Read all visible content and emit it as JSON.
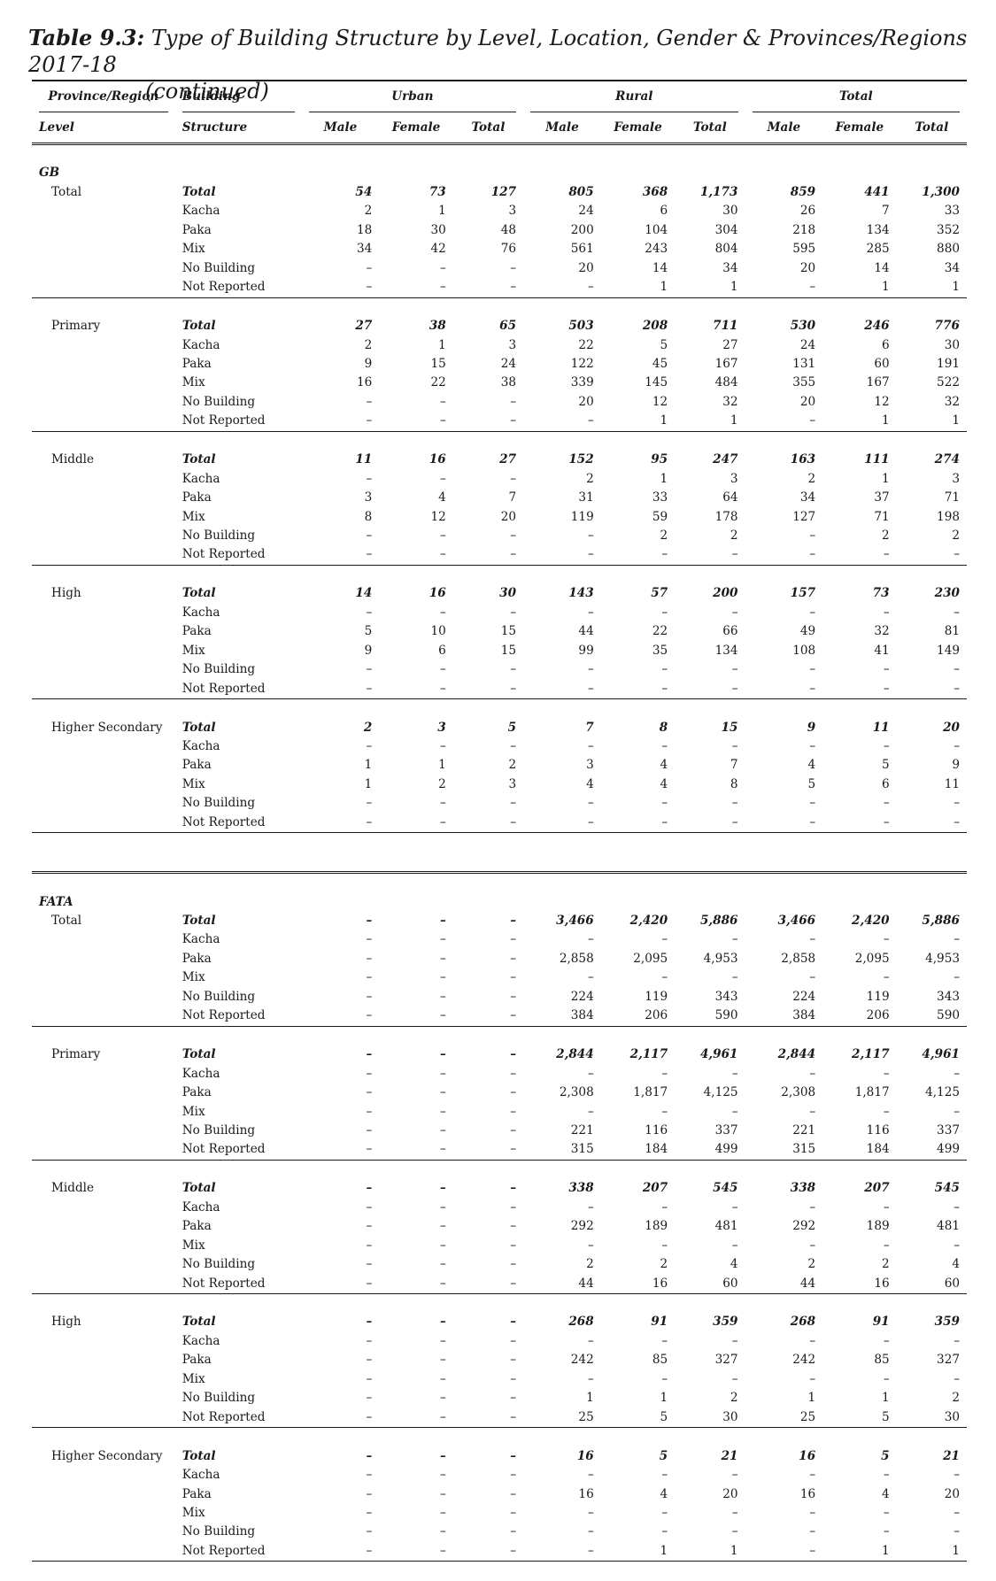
{
  "title": {
    "label": "Table 9.3:",
    "text": "Type of Building Structure by Level, Location, Gender & Provinces/Regions 2017-18",
    "continued": "(continued)"
  },
  "header": {
    "province_region": "Province/Region",
    "building": "Building",
    "level": "Level",
    "structure": "Structure",
    "groups": [
      "Urban",
      "Rural",
      "Total"
    ],
    "sub": [
      "Male",
      "Female",
      "Total"
    ]
  },
  "structures": [
    "Total",
    "Kacha",
    "Paka",
    "Mix",
    "No Building",
    "Not Reported"
  ],
  "sections": [
    {
      "name": "GB",
      "levels": [
        {
          "level": "Total",
          "rows": [
            [
              "54",
              "73",
              "127",
              "805",
              "368",
              "1,173",
              "859",
              "441",
              "1,300"
            ],
            [
              "2",
              "1",
              "3",
              "24",
              "6",
              "30",
              "26",
              "7",
              "33"
            ],
            [
              "18",
              "30",
              "48",
              "200",
              "104",
              "304",
              "218",
              "134",
              "352"
            ],
            [
              "34",
              "42",
              "76",
              "561",
              "243",
              "804",
              "595",
              "285",
              "880"
            ],
            [
              "–",
              "–",
              "–",
              "20",
              "14",
              "34",
              "20",
              "14",
              "34"
            ],
            [
              "–",
              "–",
              "–",
              "–",
              "1",
              "1",
              "–",
              "1",
              "1"
            ]
          ]
        },
        {
          "level": "Primary",
          "rows": [
            [
              "27",
              "38",
              "65",
              "503",
              "208",
              "711",
              "530",
              "246",
              "776"
            ],
            [
              "2",
              "1",
              "3",
              "22",
              "5",
              "27",
              "24",
              "6",
              "30"
            ],
            [
              "9",
              "15",
              "24",
              "122",
              "45",
              "167",
              "131",
              "60",
              "191"
            ],
            [
              "16",
              "22",
              "38",
              "339",
              "145",
              "484",
              "355",
              "167",
              "522"
            ],
            [
              "–",
              "–",
              "–",
              "20",
              "12",
              "32",
              "20",
              "12",
              "32"
            ],
            [
              "–",
              "–",
              "–",
              "–",
              "1",
              "1",
              "–",
              "1",
              "1"
            ]
          ]
        },
        {
          "level": "Middle",
          "rows": [
            [
              "11",
              "16",
              "27",
              "152",
              "95",
              "247",
              "163",
              "111",
              "274"
            ],
            [
              "–",
              "–",
              "–",
              "2",
              "1",
              "3",
              "2",
              "1",
              "3"
            ],
            [
              "3",
              "4",
              "7",
              "31",
              "33",
              "64",
              "34",
              "37",
              "71"
            ],
            [
              "8",
              "12",
              "20",
              "119",
              "59",
              "178",
              "127",
              "71",
              "198"
            ],
            [
              "–",
              "–",
              "–",
              "–",
              "2",
              "2",
              "–",
              "2",
              "2"
            ],
            [
              "–",
              "–",
              "–",
              "–",
              "–",
              "–",
              "–",
              "–",
              "–"
            ]
          ]
        },
        {
          "level": "High",
          "rows": [
            [
              "14",
              "16",
              "30",
              "143",
              "57",
              "200",
              "157",
              "73",
              "230"
            ],
            [
              "–",
              "–",
              "–",
              "–",
              "–",
              "–",
              "–",
              "–",
              "–"
            ],
            [
              "5",
              "10",
              "15",
              "44",
              "22",
              "66",
              "49",
              "32",
              "81"
            ],
            [
              "9",
              "6",
              "15",
              "99",
              "35",
              "134",
              "108",
              "41",
              "149"
            ],
            [
              "–",
              "–",
              "–",
              "–",
              "–",
              "–",
              "–",
              "–",
              "–"
            ],
            [
              "–",
              "–",
              "–",
              "–",
              "–",
              "–",
              "–",
              "–",
              "–"
            ]
          ]
        },
        {
          "level": "Higher Secondary",
          "rows": [
            [
              "2",
              "3",
              "5",
              "7",
              "8",
              "15",
              "9",
              "11",
              "20"
            ],
            [
              "–",
              "–",
              "–",
              "–",
              "–",
              "–",
              "–",
              "–",
              "–"
            ],
            [
              "1",
              "1",
              "2",
              "3",
              "4",
              "7",
              "4",
              "5",
              "9"
            ],
            [
              "1",
              "2",
              "3",
              "4",
              "4",
              "8",
              "5",
              "6",
              "11"
            ],
            [
              "–",
              "–",
              "–",
              "–",
              "–",
              "–",
              "–",
              "–",
              "–"
            ],
            [
              "–",
              "–",
              "–",
              "–",
              "–",
              "–",
              "–",
              "–",
              "–"
            ]
          ]
        }
      ]
    },
    {
      "name": "FATA",
      "levels": [
        {
          "level": "Total",
          "rows": [
            [
              "–",
              "–",
              "–",
              "3,466",
              "2,420",
              "5,886",
              "3,466",
              "2,420",
              "5,886"
            ],
            [
              "–",
              "–",
              "–",
              "–",
              "–",
              "–",
              "–",
              "–",
              "–"
            ],
            [
              "–",
              "–",
              "–",
              "2,858",
              "2,095",
              "4,953",
              "2,858",
              "2,095",
              "4,953"
            ],
            [
              "–",
              "–",
              "–",
              "–",
              "–",
              "–",
              "–",
              "–",
              "–"
            ],
            [
              "–",
              "–",
              "–",
              "224",
              "119",
              "343",
              "224",
              "119",
              "343"
            ],
            [
              "–",
              "–",
              "–",
              "384",
              "206",
              "590",
              "384",
              "206",
              "590"
            ]
          ]
        },
        {
          "level": "Primary",
          "rows": [
            [
              "–",
              "–",
              "–",
              "2,844",
              "2,117",
              "4,961",
              "2,844",
              "2,117",
              "4,961"
            ],
            [
              "–",
              "–",
              "–",
              "–",
              "–",
              "–",
              "–",
              "–",
              "–"
            ],
            [
              "–",
              "–",
              "–",
              "2,308",
              "1,817",
              "4,125",
              "2,308",
              "1,817",
              "4,125"
            ],
            [
              "–",
              "–",
              "–",
              "–",
              "–",
              "–",
              "–",
              "–",
              "–"
            ],
            [
              "–",
              "–",
              "–",
              "221",
              "116",
              "337",
              "221",
              "116",
              "337"
            ],
            [
              "–",
              "–",
              "–",
              "315",
              "184",
              "499",
              "315",
              "184",
              "499"
            ]
          ]
        },
        {
          "level": "Middle",
          "rows": [
            [
              "–",
              "–",
              "–",
              "338",
              "207",
              "545",
              "338",
              "207",
              "545"
            ],
            [
              "–",
              "–",
              "–",
              "–",
              "–",
              "–",
              "–",
              "–",
              "–"
            ],
            [
              "–",
              "–",
              "–",
              "292",
              "189",
              "481",
              "292",
              "189",
              "481"
            ],
            [
              "–",
              "–",
              "–",
              "–",
              "–",
              "–",
              "–",
              "–",
              "–"
            ],
            [
              "–",
              "–",
              "–",
              "2",
              "2",
              "4",
              "2",
              "2",
              "4"
            ],
            [
              "–",
              "–",
              "–",
              "44",
              "16",
              "60",
              "44",
              "16",
              "60"
            ]
          ]
        },
        {
          "level": "High",
          "rows": [
            [
              "–",
              "–",
              "–",
              "268",
              "91",
              "359",
              "268",
              "91",
              "359"
            ],
            [
              "–",
              "–",
              "–",
              "–",
              "–",
              "–",
              "–",
              "–",
              "–"
            ],
            [
              "–",
              "–",
              "–",
              "242",
              "85",
              "327",
              "242",
              "85",
              "327"
            ],
            [
              "–",
              "–",
              "–",
              "–",
              "–",
              "–",
              "–",
              "–",
              "–"
            ],
            [
              "–",
              "–",
              "–",
              "1",
              "1",
              "2",
              "1",
              "1",
              "2"
            ],
            [
              "–",
              "–",
              "–",
              "25",
              "5",
              "30",
              "25",
              "5",
              "30"
            ]
          ]
        },
        {
          "level": "Higher Secondary",
          "rows": [
            [
              "–",
              "–",
              "–",
              "16",
              "5",
              "21",
              "16",
              "5",
              "21"
            ],
            [
              "–",
              "–",
              "–",
              "–",
              "–",
              "–",
              "–",
              "–",
              "–"
            ],
            [
              "–",
              "–",
              "–",
              "16",
              "4",
              "20",
              "16",
              "4",
              "20"
            ],
            [
              "–",
              "–",
              "–",
              "–",
              "–",
              "–",
              "–",
              "–",
              "–"
            ],
            [
              "–",
              "–",
              "–",
              "–",
              "–",
              "–",
              "–",
              "–",
              "–"
            ],
            [
              "–",
              "–",
              "–",
              "–",
              "1",
              "1",
              "–",
              "1",
              "1"
            ]
          ]
        }
      ]
    }
  ]
}
